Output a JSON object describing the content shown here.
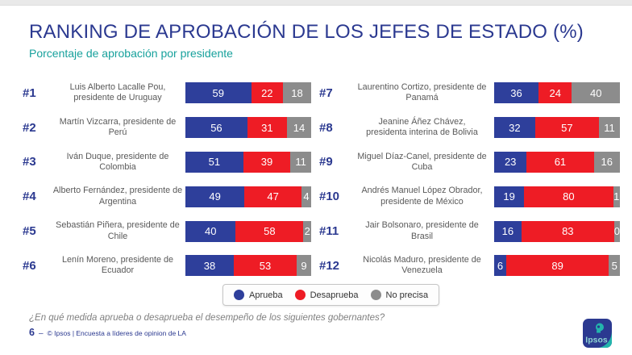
{
  "slide": {
    "title": "RANKING DE APROBACIÓN DE LOS JEFES DE ESTADO (%)",
    "subtitle": "Porcentaje de aprobación por presidente",
    "question": "¿En qué medida aprueba o desaprueba el desempeño de los siguientes gobernantes?",
    "page_number": "6",
    "footer_separator": "–",
    "source": "© Ipsos | Encuesta a líderes de opinion de LA",
    "logo_text": "Ipsos"
  },
  "colors": {
    "title_blue": "#2b3990",
    "subtitle_teal": "#17a19c",
    "bar_blue": "#2e3f9b",
    "bar_red": "#ee1c25",
    "bar_gray": "#8c8c8c",
    "name_text": "#595959"
  },
  "chart_data": {
    "type": "bar",
    "variant": "horizontal-stacked",
    "unit": "%",
    "title": "RANKING DE APROBACIÓN DE LOS JEFES DE ESTADO (%)",
    "subtitle": "Porcentaje de aprobación por presidente",
    "xlim": [
      0,
      100
    ],
    "legend_position": "bottom-center",
    "series": [
      {
        "key": "aprueba",
        "name": "Aprueba",
        "color": "#2e3f9b"
      },
      {
        "key": "desaprueba",
        "name": "Desaprueba",
        "color": "#ee1c25"
      },
      {
        "key": "no-precisa",
        "name": "No precisa",
        "color": "#8c8c8c"
      }
    ],
    "rows": [
      {
        "rank": "#1",
        "name": "Luis Alberto Lacalle Pou,\npresidente de Uruguay",
        "values": [
          59,
          22,
          18
        ]
      },
      {
        "rank": "#2",
        "name": "Martín Vizcarra, presidente de\nPerú",
        "values": [
          56,
          31,
          14
        ]
      },
      {
        "rank": "#3",
        "name": "Iván Duque, presidente de\nColombia",
        "values": [
          51,
          39,
          11
        ]
      },
      {
        "rank": "#4",
        "name": "Alberto Fernández, presidente de\nArgentina",
        "values": [
          49,
          47,
          4
        ]
      },
      {
        "rank": "#5",
        "name": "Sebastián Piñera, presidente de\nChile",
        "values": [
          40,
          58,
          2
        ]
      },
      {
        "rank": "#6",
        "name": "Lenín Moreno, presidente de\nEcuador",
        "values": [
          38,
          53,
          9
        ]
      },
      {
        "rank": "#7",
        "name": "Laurentino Cortizo, presidente de\nPanamá",
        "values": [
          36,
          24,
          40
        ]
      },
      {
        "rank": "#8",
        "name": "Jeanine Áñez Chávez,\npresidenta interina de Bolivia",
        "values": [
          32,
          57,
          11
        ]
      },
      {
        "rank": "#9",
        "name": "Miguel Díaz-Canel, presidente de\nCuba",
        "values": [
          23,
          61,
          16
        ]
      },
      {
        "rank": "#10",
        "name": "Andrés Manuel López Obrador,\npresidente de México",
        "values": [
          19,
          80,
          1
        ]
      },
      {
        "rank": "#11",
        "name": "Jair Bolsonaro, presidente de\nBrasil",
        "values": [
          16,
          83,
          0
        ]
      },
      {
        "rank": "#12",
        "name": "Nicolás Maduro, presidente de\nVenezuela",
        "values": [
          6,
          89,
          5
        ]
      }
    ]
  }
}
